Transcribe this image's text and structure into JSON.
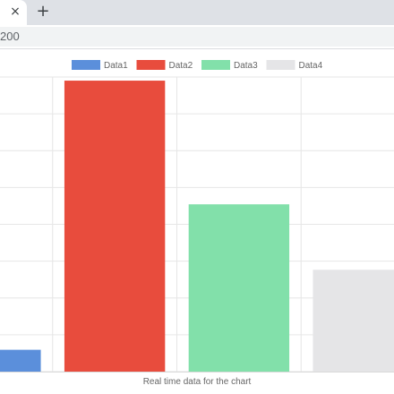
{
  "browser": {
    "tab_close_glyph": "×",
    "new_tab_glyph": "+",
    "url_text": "200"
  },
  "chart_data": {
    "type": "bar",
    "title": "",
    "xlabel": "Real time data for the chart",
    "ylabel": "",
    "categories": [
      "Data1",
      "Data2",
      "Data3",
      "Data4"
    ],
    "values": [
      6,
      80,
      46,
      28
    ],
    "colors": [
      "#5b8fdb",
      "#e84c3d",
      "#82e0aa",
      "#e5e5e7"
    ],
    "ylim": [
      0,
      81
    ],
    "grid": true,
    "legend": "top"
  }
}
